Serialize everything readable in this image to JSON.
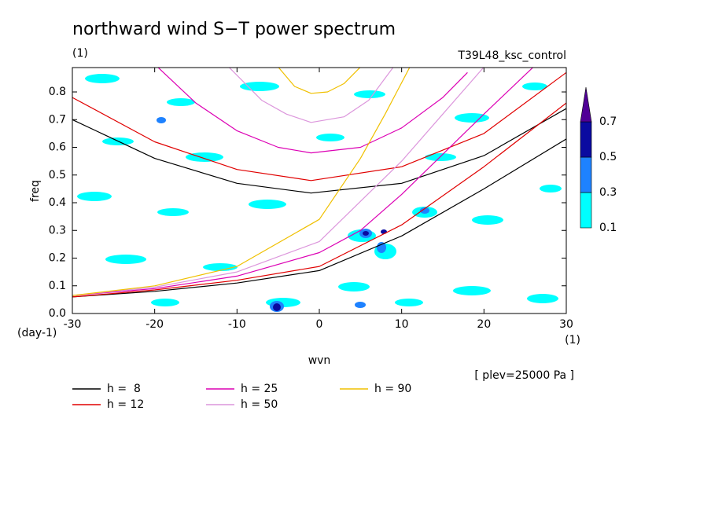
{
  "chart_data": {
    "type": "line",
    "title": "northward wind S−T power spectrum",
    "subtitle": "(1)",
    "run_label": "T39L48_ksc_control",
    "x_label": "wvn",
    "x_unit": "(1)",
    "y_label": "freq",
    "y_unit": "(day-1)",
    "level_note": "[ plev=25000 Pa ]",
    "xlim": [
      -30,
      30
    ],
    "xticks": [
      -30,
      -20,
      -10,
      0,
      10,
      20,
      30
    ],
    "ylim": [
      0,
      0.888
    ],
    "yticks": [
      {
        "value": 0,
        "label": "0.0"
      },
      0.1,
      0.2,
      0.3,
      0.4,
      0.5,
      0.6,
      0.7,
      0.8
    ],
    "colorbar": {
      "levels": [
        0.1,
        0.3,
        0.5,
        0.7
      ],
      "colors": [
        "#00ffff",
        "#1e82ff",
        "#0a0aa0",
        "#500096"
      ]
    },
    "series": [
      {
        "name": "h =  8",
        "color": "#000000",
        "x": [
          -30,
          -20,
          -10,
          0,
          10,
          20,
          30,
          null,
          -30,
          -20,
          -10,
          -1,
          10,
          20,
          30
        ],
        "values": [
          0.06,
          0.08,
          0.11,
          0.155,
          0.28,
          0.45,
          0.63,
          null,
          0.7,
          0.56,
          0.47,
          0.435,
          0.47,
          0.57,
          0.74
        ]
      },
      {
        "name": "h = 12",
        "color": "#e00000",
        "x": [
          -30,
          -20,
          -10,
          0,
          10,
          20,
          30,
          null,
          -30,
          -20,
          -10,
          -1,
          10,
          20,
          30
        ],
        "values": [
          0.06,
          0.085,
          0.12,
          0.17,
          0.32,
          0.53,
          0.76,
          null,
          0.78,
          0.62,
          0.52,
          0.48,
          0.53,
          0.65,
          0.87
        ]
      },
      {
        "name": "h = 25",
        "color": "#dc00b4",
        "x": [
          -30,
          -20,
          -10,
          0,
          5,
          10,
          20,
          26,
          null,
          -20,
          -15,
          -10,
          -5,
          -1,
          5,
          10,
          15,
          18
        ],
        "values": [
          0.065,
          0.09,
          0.135,
          0.22,
          0.3,
          0.43,
          0.72,
          0.89,
          null,
          0.9,
          0.76,
          0.66,
          0.6,
          0.58,
          0.6,
          0.67,
          0.78,
          0.87
        ]
      },
      {
        "name": "h = 50",
        "color": "#dc96dc",
        "x": [
          -30,
          -20,
          -10,
          0,
          10,
          15,
          20,
          null,
          -11,
          -7,
          -4,
          -1,
          3,
          6,
          9
        ],
        "values": [
          0.065,
          0.095,
          0.15,
          0.26,
          0.55,
          0.72,
          0.89,
          null,
          0.89,
          0.77,
          0.72,
          0.69,
          0.71,
          0.77,
          0.89
        ]
      },
      {
        "name": "h = 90",
        "color": "#f0c000",
        "x": [
          -30,
          -20,
          -10,
          0,
          5,
          8,
          11,
          null,
          -5,
          -3,
          -1,
          1,
          3,
          5
        ],
        "values": [
          0.065,
          0.1,
          0.17,
          0.34,
          0.56,
          0.72,
          0.89,
          null,
          0.89,
          0.82,
          0.795,
          0.8,
          0.83,
          0.89
        ]
      }
    ]
  }
}
